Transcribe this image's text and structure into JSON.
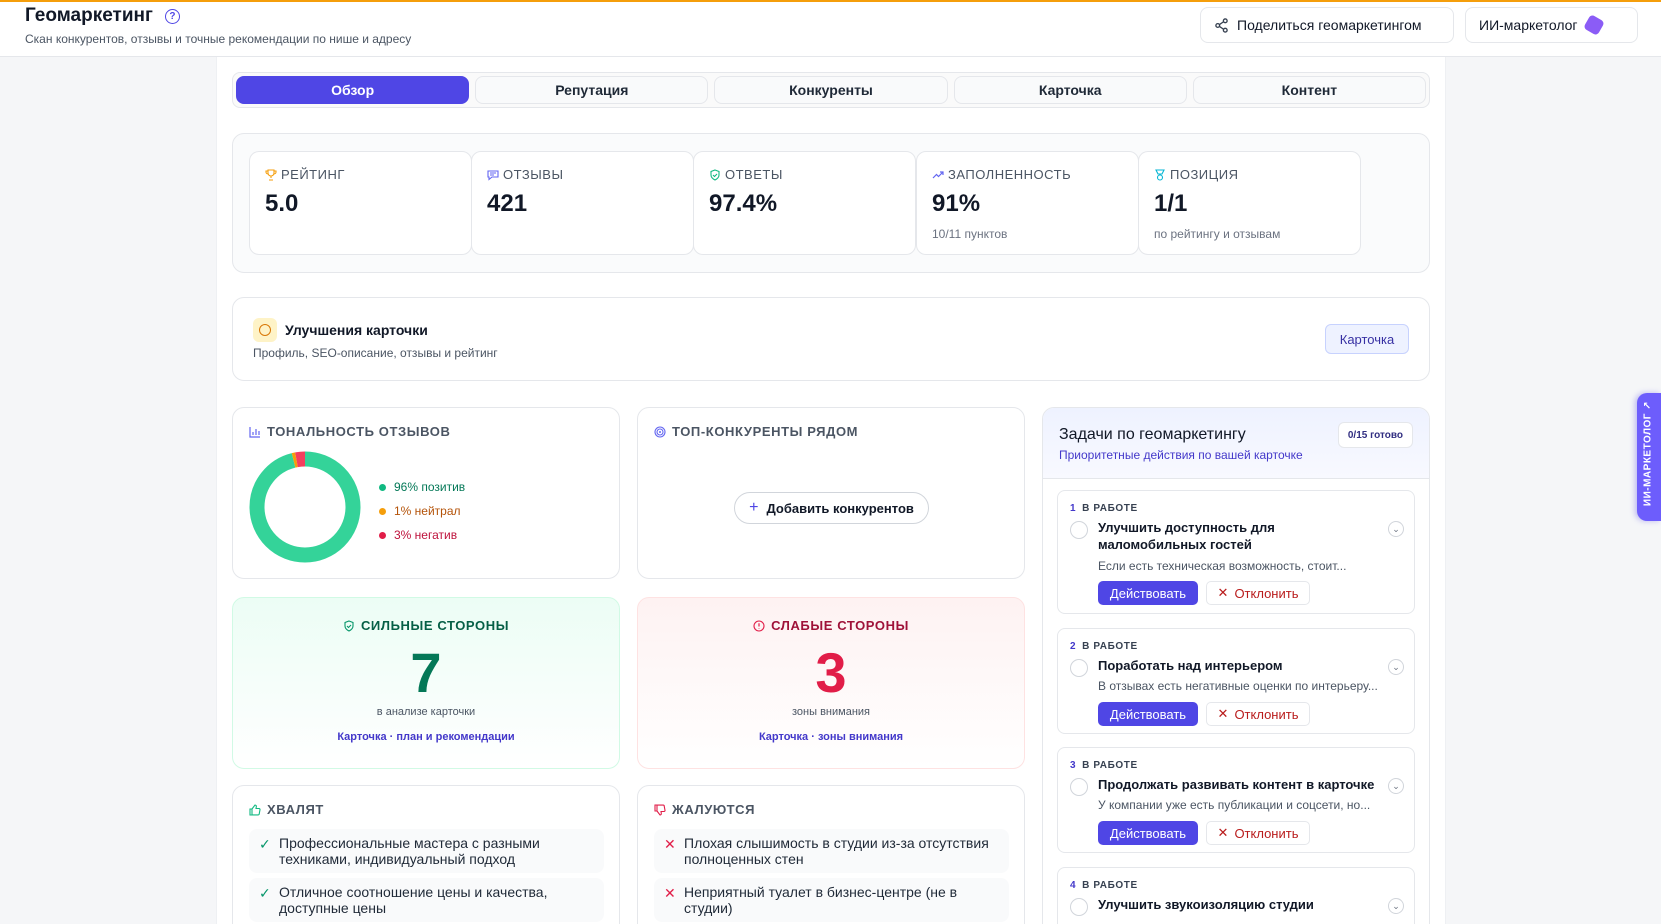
{
  "header": {
    "title": "Геомаркетинг",
    "subtitle": "Скан конкурентов, отзывы и точные рекомендации по нише и адресу",
    "share_label": "Поделиться геомаркетингом",
    "ai_label": "ИИ-маркетолог",
    "accent": "#f59e0b"
  },
  "tabs": [
    {
      "label": "Обзор",
      "active": true
    },
    {
      "label": "Репутация",
      "active": false
    },
    {
      "label": "Конкуренты",
      "active": false
    },
    {
      "label": "Карточка",
      "active": false
    },
    {
      "label": "Контент",
      "active": false
    }
  ],
  "stats": [
    {
      "label": "РЕЙТИНГ",
      "value": "5.0",
      "sub": "",
      "icon": "trophy-icon",
      "color": "#f59e0b"
    },
    {
      "label": "ОТЗЫВЫ",
      "value": "421",
      "sub": "",
      "icon": "message-icon",
      "color": "#6366f1"
    },
    {
      "label": "ОТВЕТЫ",
      "value": "97.4%",
      "sub": "",
      "icon": "shield-check-icon",
      "color": "#10b981"
    },
    {
      "label": "ЗАПОЛНЕННОСТЬ",
      "value": "91%",
      "sub": "10/11 пунктов",
      "icon": "trend-up-icon",
      "color": "#6366f1"
    },
    {
      "label": "ПОЗИЦИЯ",
      "value": "1/1",
      "sub": "по рейтингу и отзывам",
      "icon": "medal-icon",
      "color": "#06b6d4"
    }
  ],
  "improve": {
    "title": "Улучшения карточки",
    "subtitle": "Профиль, SEO-описание, отзывы и рейтинг",
    "button": "Карточка"
  },
  "tone": {
    "label": "ТОНАЛЬНОСТЬ ОТЗЫВОВ",
    "segments": [
      {
        "label": "96% позитив",
        "percent": 96,
        "color": "#34d399",
        "text_color": "#047857"
      },
      {
        "label": "1% нейтрал",
        "percent": 1,
        "color": "#f59e0b",
        "text_color": "#b45309"
      },
      {
        "label": "3% негатив",
        "percent": 3,
        "color": "#f43f5e",
        "text_color": "#be123c"
      }
    ]
  },
  "competitors": {
    "label": "ТОП-КОНКУРЕНТЫ РЯДОМ",
    "add_button": "Добавить конкурентов"
  },
  "strengths": {
    "title": "СИЛЬНЫЕ СТОРОНЫ",
    "count": "7",
    "sub": "в анализе карточки",
    "link": "Карточка · план и рекомендации"
  },
  "weaknesses": {
    "title": "СЛАБЫЕ СТОРОНЫ",
    "count": "3",
    "sub": "зоны внимания",
    "link": "Карточка · зоны внимания"
  },
  "praise": {
    "label": "ХВАЛЯТ",
    "items": [
      "Профессиональные мастера с разными техниками, индивидуальный подход",
      "Отличное соотношение цены и качества, доступные цены"
    ]
  },
  "complaints": {
    "label": "ЖАЛУЮТСЯ",
    "items": [
      "Плохая слышимость в студии из-за отсутствия полноценных стен",
      "Неприятный туалет в бизнес-центре (не в студии)"
    ]
  },
  "tasks": {
    "title": "Задачи по геомаркетингу",
    "subtitle": "Приоритетные действия по вашей карточке",
    "badge": "0/15 готово",
    "act_label": "Действовать",
    "reject_label": "Отклонить",
    "items": [
      {
        "num": "1",
        "status": "В РАБОТЕ",
        "title": "Улучшить доступность для маломобильных гостей",
        "desc": "Если есть техническая возможность, стоит..."
      },
      {
        "num": "2",
        "status": "В РАБОТЕ",
        "title": "Поработать над интерьером",
        "desc": "В отзывах есть негативные оценки по интерьеру..."
      },
      {
        "num": "3",
        "status": "В РАБОТЕ",
        "title": "Продолжать развивать контент в карточке",
        "desc": "У компании уже есть публикации и соцсети, но..."
      },
      {
        "num": "4",
        "status": "В РАБОТЕ",
        "title": "Улучшить звукоизоляцию студии",
        "desc": ""
      }
    ]
  },
  "side_tab": "ИИ-МАРКЕТОЛОГ ↗"
}
